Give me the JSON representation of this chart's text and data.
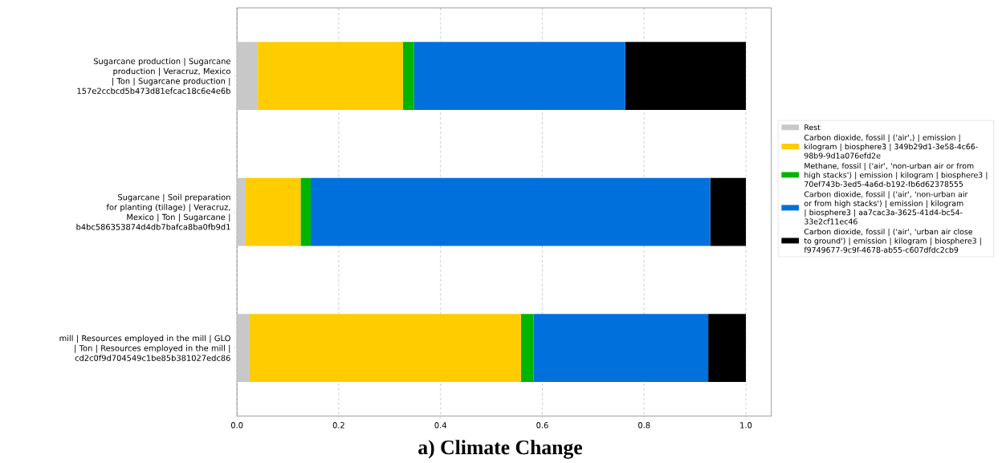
{
  "chart_data": {
    "type": "bar",
    "orientation": "horizontal",
    "stacked": true,
    "title": "a) Climate Change",
    "categories": [
      "Sugarcane production | Sugarcane production | Veracruz, Mexico | Ton | Sugarcane production | 157e2ccbcd5b473d81efcac18c6e4e6b",
      "Sugarcane | Soil preparation for planting (tillage) | Veracruz, Mexico | Ton | Sugarcane | b4bc586353874d4db7bafca8ba0fb9d1",
      "mill | Resources employed in the mill | GLO | Ton | Resources employed in the mill | cd2c0f9d704549c1be85b381027edc86"
    ],
    "series": [
      {
        "name": "Rest",
        "color": "#c8c8c8",
        "values": [
          0.041,
          0.017,
          0.025
        ]
      },
      {
        "name": "Carbon dioxide, fossil | ('air',) | emission | kilogram | biosphere3 | 349b29d1-3e58-4c66-98b9-9d1a076efd2e",
        "color": "#ffcc00",
        "values": [
          0.285,
          0.108,
          0.533
        ]
      },
      {
        "name": "Methane, fossil | ('air', 'non-urban air or from high stacks') | emission | kilogram | biosphere3 | 70ef743b-3ed5-4a6d-b192-fb6d62378555",
        "color": "#00b400",
        "values": [
          0.022,
          0.02,
          0.025
        ]
      },
      {
        "name": "Carbon dioxide, fossil | ('air', 'non-urban air or from high stacks') | emission | kilogram | biosphere3 | aa7cac3a-3625-41d4-bc54-33e2cf11ec46",
        "color": "#0070dc",
        "values": [
          0.415,
          0.785,
          0.343
        ]
      },
      {
        "name": "Carbon dioxide, fossil | ('air', 'urban air close to ground') | emission | kilogram | biosphere3 | f9749677-9c9f-4678-ab55-c607dfdc2cb9",
        "color": "#000000",
        "values": [
          0.237,
          0.07,
          0.074
        ]
      }
    ],
    "xlim": [
      0,
      1.05
    ],
    "xticks": [
      {
        "value": 0,
        "label": "0.0"
      },
      {
        "value": 0.2,
        "label": "0.2"
      },
      {
        "value": 0.4,
        "label": "0.4"
      },
      {
        "value": 0.6,
        "label": "0.6"
      },
      {
        "value": 0.8,
        "label": "0.8"
      },
      {
        "value": 1.0,
        "label": "1.0"
      }
    ],
    "grid": "x",
    "legend": "right"
  }
}
